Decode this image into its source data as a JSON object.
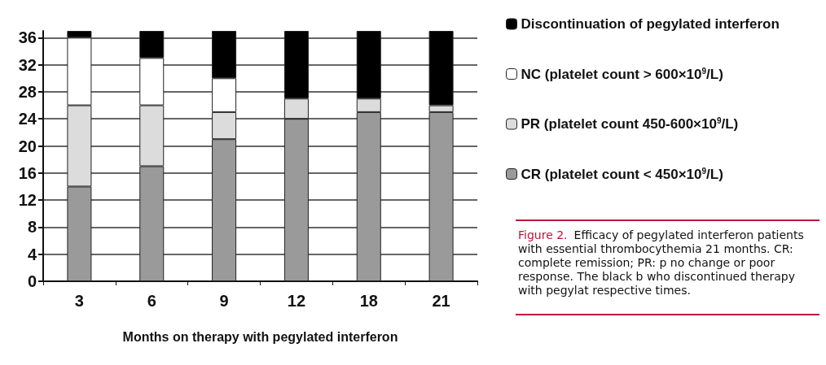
{
  "chart_data": {
    "type": "bar",
    "stacked": true,
    "xlabel": "Months on therapy with pegylated interferon",
    "categories": [
      "3",
      "6",
      "9",
      "12",
      "18",
      "21"
    ],
    "series": [
      {
        "name": "CR (platelet count < 450×10$^{9}$/L)",
        "color": "#9a9a9a",
        "values": [
          14,
          17,
          21,
          24,
          25,
          25
        ]
      },
      {
        "name": "PR (platelet count 450-600×10$^{9}$/L)",
        "color": "#dcdcdc",
        "values": [
          12,
          9,
          4,
          3,
          2,
          1
        ]
      },
      {
        "name": "NC (platelet count > 600×10$^{9}$/L)",
        "color": "#ffffff",
        "values": [
          10,
          7,
          5,
          0,
          0,
          0
        ]
      },
      {
        "name": "Discontinuation of pegylated interferon",
        "color": "#000000",
        "values": [
          1,
          4,
          7,
          10,
          10,
          11
        ]
      }
    ],
    "ylim": [
      0,
      37
    ],
    "yticks": [
      0,
      4,
      8,
      12,
      16,
      20,
      24,
      28,
      32,
      36
    ],
    "grid": "y",
    "legend": "right",
    "annotations": [
      "Figure 2.",
      "Efficacy of pegylated interferon patients with essential thrombocythemia 21 months. CR: complete remission; PR: p no change or poor response. The black b who discontinued therapy with pegylat respective times."
    ]
  }
}
